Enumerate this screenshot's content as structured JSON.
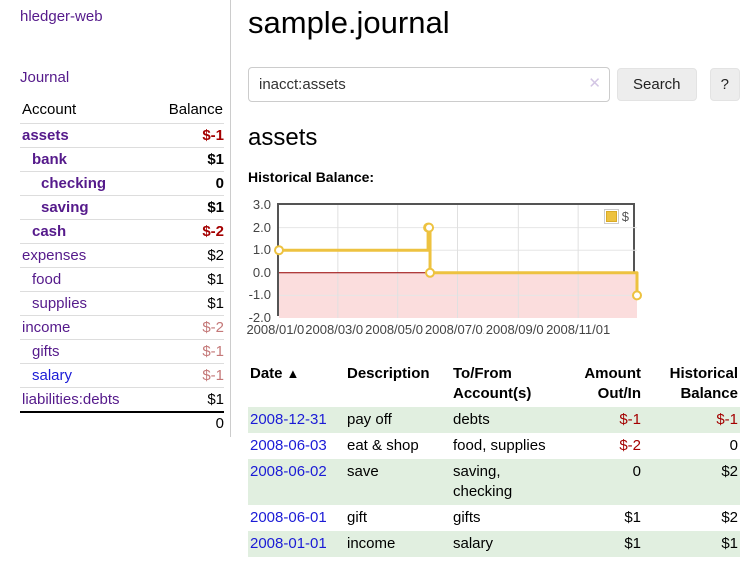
{
  "sidebar": {
    "brand": "hledger-web",
    "nav": {
      "journal": "Journal"
    },
    "accounts_table": {
      "col_account": "Account",
      "col_balance": "Balance",
      "rows": [
        {
          "name": "assets",
          "balance": "$-1"
        },
        {
          "name": "bank",
          "balance": "$1"
        },
        {
          "name": "checking",
          "balance": "0"
        },
        {
          "name": "saving",
          "balance": "$1"
        },
        {
          "name": "cash",
          "balance": "$-2"
        },
        {
          "name": "expenses",
          "balance": "$2"
        },
        {
          "name": "food",
          "balance": "$1"
        },
        {
          "name": "supplies",
          "balance": "$1"
        },
        {
          "name": "income",
          "balance": "$-2"
        },
        {
          "name": "gifts",
          "balance": "$-1"
        },
        {
          "name": "salary",
          "balance": "$-1"
        },
        {
          "name": "liabilities:debts",
          "balance": "$1"
        }
      ],
      "total": "0"
    }
  },
  "header": {
    "title": "sample.journal"
  },
  "search": {
    "value": "inacct:assets",
    "clear_icon": "✕",
    "button_label": "Search",
    "help_button_label": "?"
  },
  "account_page": {
    "heading": "assets",
    "chart_label": "Historical Balance:"
  },
  "chart_data": {
    "type": "line",
    "step": true,
    "title": "Historical Balance:",
    "series": [
      {
        "name": "$",
        "color": "#edc240",
        "points": [
          {
            "date": "2008-01-01",
            "value": 1
          },
          {
            "date": "2008-06-01",
            "value": 2
          },
          {
            "date": "2008-06-02",
            "value": 2
          },
          {
            "date": "2008-06-03",
            "value": 0
          },
          {
            "date": "2008-12-31",
            "value": -1
          }
        ]
      }
    ],
    "x_range": [
      "2008-01-01",
      "2008-12-31"
    ],
    "y_range": [
      -2,
      3
    ],
    "y_ticks": [
      "3.0",
      "2.0",
      "1.0",
      "0.0",
      "-1.0",
      "-2.0"
    ],
    "x_ticks": [
      "2008/01/01",
      "2008/03/01",
      "2008/05/01",
      "2008/07/01",
      "2008/09/01",
      "2008/11/01"
    ],
    "grid": true,
    "legend": {
      "label": "$",
      "position": "top-right"
    },
    "negative_region_color": "#fbdddd",
    "zero_line_color": "#990000"
  },
  "register_table": {
    "headers": {
      "date": "Date",
      "sort_icon": "▲",
      "description": "Description",
      "to_from": [
        "To/From",
        "Account(s)"
      ],
      "amount": [
        "Amount",
        "Out/In"
      ],
      "balance": [
        "Historical",
        "Balance"
      ]
    },
    "rows": [
      {
        "date": "2008-12-31",
        "description": "pay off",
        "accounts": "debts",
        "amount": "$-1",
        "balance": "$-1"
      },
      {
        "date": "2008-06-03",
        "description": "eat & shop",
        "accounts": "food, supplies",
        "amount": "$-2",
        "balance": "0"
      },
      {
        "date": "2008-06-02",
        "description": "save",
        "accounts": "saving, checking",
        "amount": "0",
        "balance": "$2"
      },
      {
        "date": "2008-06-01",
        "description": "gift",
        "accounts": "gifts",
        "amount": "$1",
        "balance": "$2"
      },
      {
        "date": "2008-01-01",
        "description": "income",
        "accounts": "salary",
        "amount": "$1",
        "balance": "$1"
      }
    ]
  },
  "colors": {
    "link_purple": "#551a8b",
    "link_blue": "#1b1bd6",
    "negative_strong": "#a40000",
    "negative_soft": "#c47878",
    "row_stripe_green": "#e1efe0",
    "chart_series_gold": "#edc240",
    "chart_negative_fill": "#fbdddd",
    "chart_zero_line": "#990000",
    "chart_border": "#545454"
  }
}
